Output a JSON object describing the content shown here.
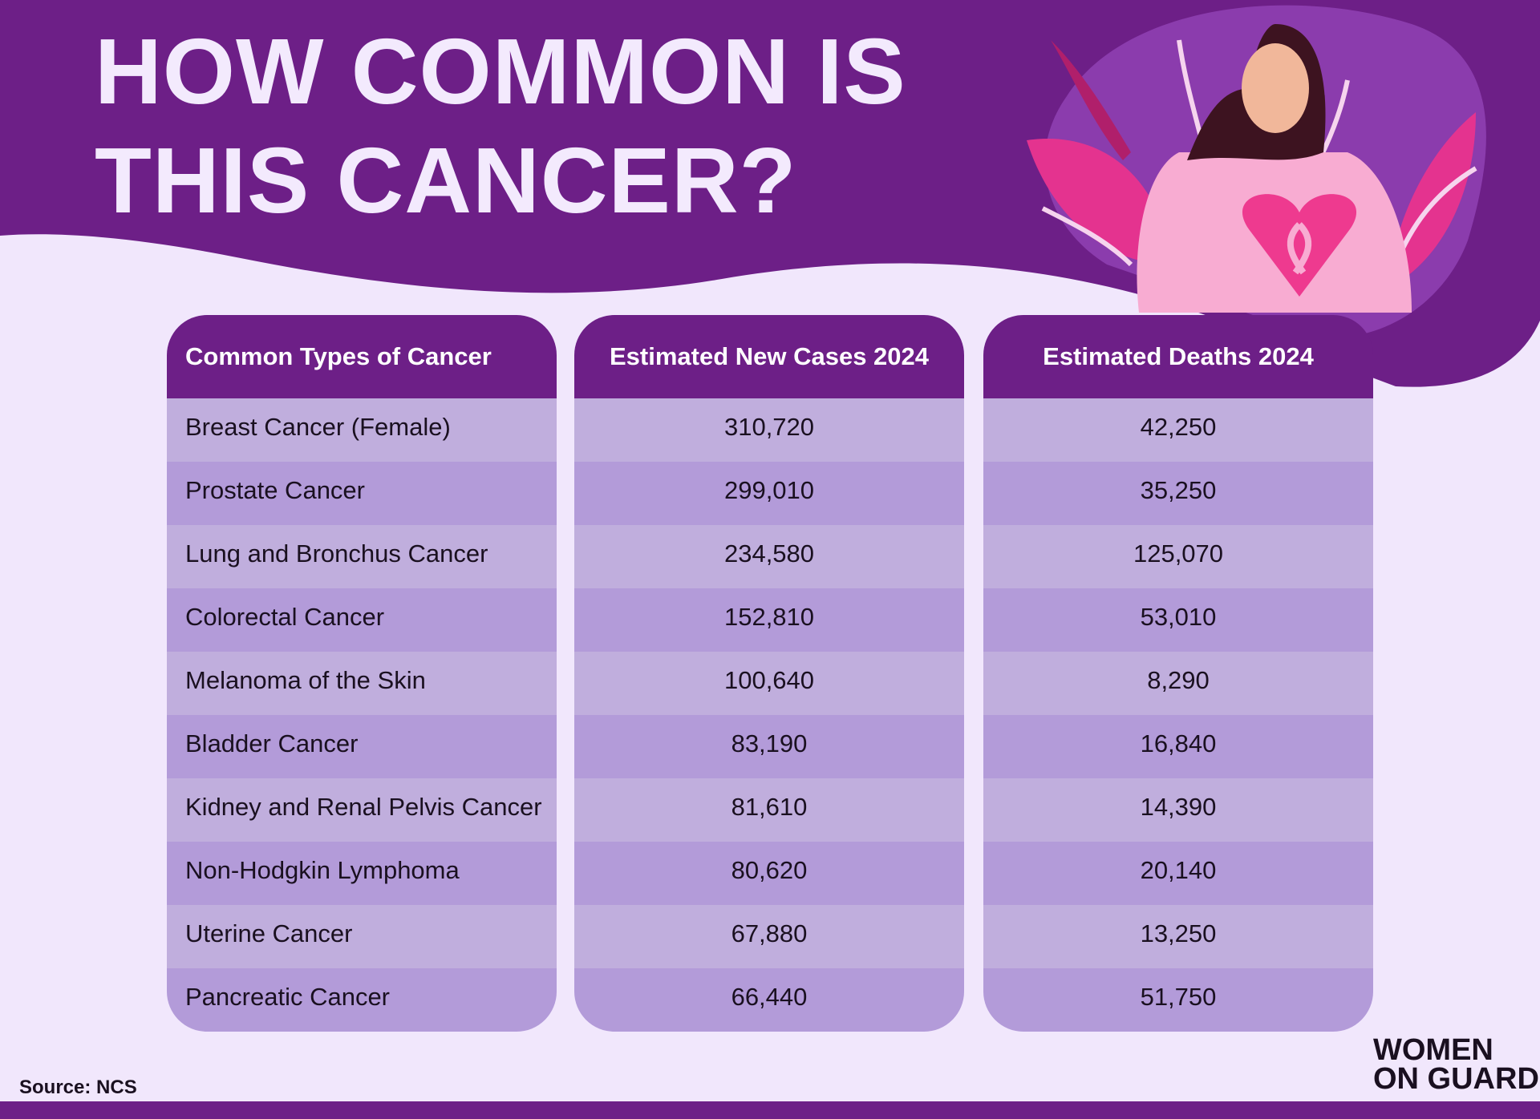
{
  "header": {
    "title_lines": [
      "HOW COMMON IS",
      "THIS CANCER?"
    ]
  },
  "table": {
    "columns": [
      "Common Types of Cancer",
      "Estimated New Cases 2024",
      "Estimated Deaths 2024"
    ],
    "rows": [
      [
        "Breast Cancer (Female)",
        "310,720",
        "42,250"
      ],
      [
        "Prostate Cancer",
        "299,010",
        "35,250"
      ],
      [
        "Lung and Bronchus Cancer",
        "234,580",
        "125,070"
      ],
      [
        "Colorectal Cancer",
        "152,810",
        "53,010"
      ],
      [
        "Melanoma of the Skin",
        "100,640",
        "8,290"
      ],
      [
        "Bladder Cancer",
        "83,190",
        "16,840"
      ],
      [
        "Kidney and Renal Pelvis Cancer",
        "81,610",
        "14,390"
      ],
      [
        "Non-Hodgkin Lymphoma",
        "80,620",
        "20,140"
      ],
      [
        "Uterine Cancer",
        "67,880",
        "13,250"
      ],
      [
        "Pancreatic Cancer",
        "66,440",
        "51,750"
      ]
    ]
  },
  "footer": {
    "source": "Source: NCS",
    "logo_lines": [
      "WOMEN",
      "ON GUARD"
    ]
  }
}
